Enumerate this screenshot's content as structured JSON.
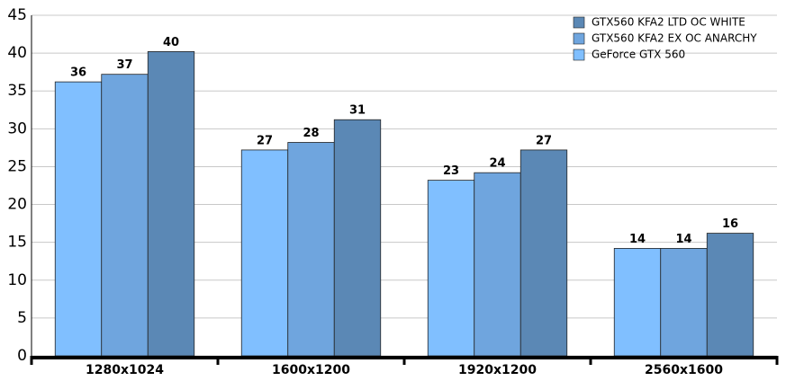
{
  "chart_data": {
    "type": "bar",
    "categories": [
      "1280x1024",
      "1600x1200",
      "1920x1200",
      "2560x1600"
    ],
    "series": [
      {
        "name": "GeForce GTX 560",
        "color": "#80bfff",
        "values": [
          36.2,
          27.2,
          23.2,
          14.2
        ],
        "value_labels": [
          "36",
          "27",
          "23",
          "14"
        ]
      },
      {
        "name": "GTX560 KFA2 EX OC ANARCHY",
        "color": "#6fa5de",
        "values": [
          37.2,
          28.2,
          24.2,
          14.2
        ],
        "value_labels": [
          "37",
          "28",
          "24",
          "14"
        ]
      },
      {
        "name": "GTX560 KFA2 LTD OC WHITE",
        "color": "#5b88b5",
        "values": [
          40.2,
          31.2,
          27.2,
          16.2
        ],
        "value_labels": [
          "40",
          "31",
          "27",
          "16"
        ]
      }
    ],
    "ylim": [
      0,
      45
    ],
    "yticks": [
      0,
      5,
      10,
      15,
      20,
      25,
      30,
      35,
      40,
      45
    ],
    "grid": true,
    "legend": "top-right"
  }
}
